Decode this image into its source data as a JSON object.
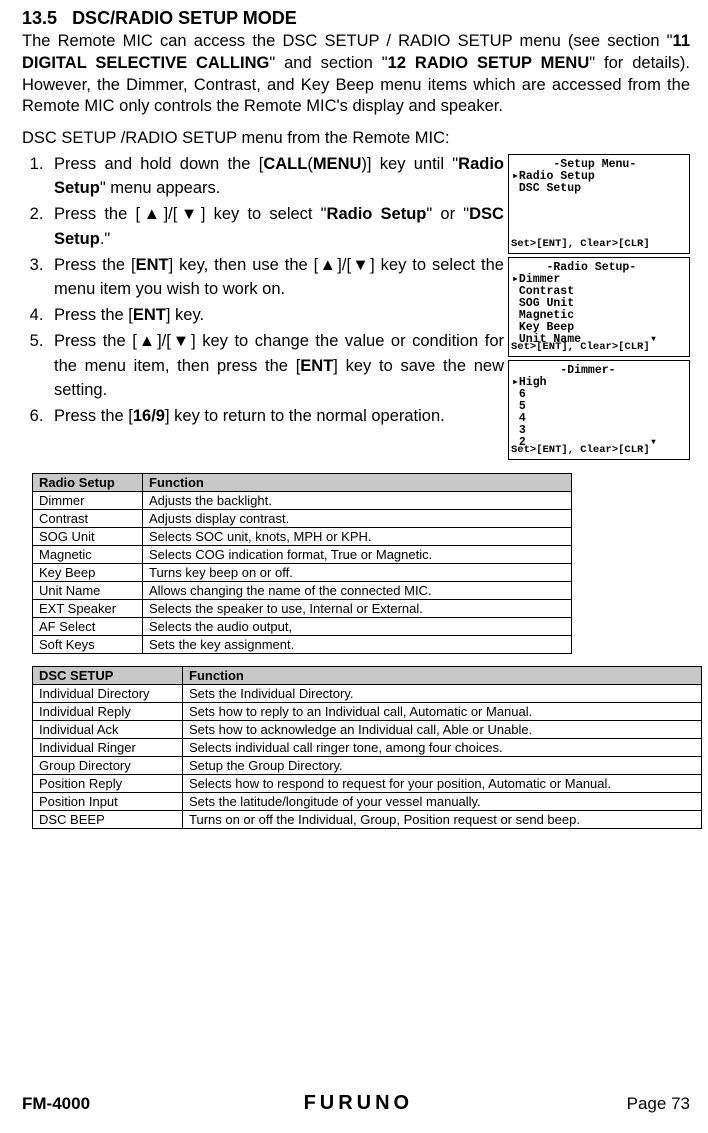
{
  "section": {
    "number": "13.5",
    "title": "DSC/RADIO SETUP MODE"
  },
  "intro": {
    "text_parts": [
      "The Remote MIC can access the DSC SETUP / RADIO SETUP menu (see section \"",
      "11 DIGITAL SELECTIVE CALLING",
      "\" and section \"",
      "12 RADIO SETUP MENU",
      "\" for details). However, the Dimmer, Contrast, and Key Beep menu items which are accessed from the Remote MIC only controls the Remote MIC's display and speaker."
    ]
  },
  "subintro": "DSC SETUP /RADIO SETUP menu from the Remote MIC:",
  "steps": [
    {
      "prefix": "Press and hold down the [",
      "b1": "CALL",
      "mid1": "(",
      "b2": "MENU",
      "mid2": ")] key until \"",
      "pix": "Radio Setup",
      "suffix": "\" menu appears."
    },
    {
      "prefix": "Press the [",
      "tri1": "▲",
      "mid1": "]/[",
      "tri2": "▼",
      "mid2": "] key to select \"",
      "pix": "Radio Setup",
      "mid3": "\" or \"",
      "pix2": "DSC Setup",
      "suffix": ".\""
    },
    {
      "prefix": "Press the [",
      "b1": "ENT",
      "mid1": "] key, then use the [",
      "tri1": "▲",
      "mid2": "]/[",
      "tri2": "▼",
      "suffix": "] key to select the menu item you wish to work on."
    },
    {
      "prefix": "Press the [",
      "b1": "ENT",
      "suffix": "] key."
    },
    {
      "prefix": "Press the [",
      "tri1": "▲",
      "mid1": "]/[",
      "tri2": "▼",
      "mid2": "] key to change the value or condi­tion for the menu item, then press the [",
      "b1": "ENT",
      "suffix": "] key to save the new setting."
    },
    {
      "prefix": "Press the [",
      "b1": "16/9",
      "suffix": "] key to return to the normal opera­tion."
    }
  ],
  "lcds": [
    {
      "lines": [
        "      -Setup Menu-",
        "▸Radio Setup",
        " DSC Setup",
        "",
        ""
      ],
      "footer": "Set>[ENT], Clear>[CLR]"
    },
    {
      "lines": [
        "     -Radio Setup-",
        "▸Dimmer",
        " Contrast",
        " SOG Unit",
        " Magnetic",
        " Key Beep",
        " Unit Name          ▾"
      ],
      "footer": "Set>[ENT], Clear>[CLR]"
    },
    {
      "lines": [
        "       -Dimmer-",
        "▸High",
        " 6",
        " 5",
        " 4",
        " 3",
        " 2                  ▾"
      ],
      "footer": "Set>[ENT], Clear>[CLR]"
    }
  ],
  "table1": {
    "headers": [
      "Radio Setup",
      "Function"
    ],
    "rows": [
      [
        "Dimmer",
        "Adjusts the backlight."
      ],
      [
        "Contrast",
        "Adjusts display contrast."
      ],
      [
        "SOG Unit",
        "Selects SOC unit, knots, MPH or KPH."
      ],
      [
        "Magnetic",
        "Selects COG indication format, True or Magnetic."
      ],
      [
        "Key Beep",
        "Turns key beep on or off."
      ],
      [
        "Unit Name",
        "Allows changing the name of the connected MIC."
      ],
      [
        "EXT Speaker",
        "Selects the speaker to use, Internal or External."
      ],
      [
        "AF Select",
        "Selects the audio output,"
      ],
      [
        "Soft Keys",
        "Sets the key assignment."
      ]
    ]
  },
  "table2": {
    "headers": [
      "DSC SETUP",
      "Function"
    ],
    "rows": [
      [
        "Individual Directory",
        "Sets the Individual Directory."
      ],
      [
        "Individual Reply",
        "Sets how to reply to an Individual call, Automatic or Manual."
      ],
      [
        "Individual Ack",
        "Sets how to acknowledge an Individual call, Able or Unable."
      ],
      [
        "Individual Ringer",
        "Selects individual call ringer tone, among four choices."
      ],
      [
        "Group Directory",
        "Setup the Group Directory."
      ],
      [
        "Position Reply",
        "Selects how to respond to request for your position, Automatic or Manual."
      ],
      [
        "Position Input",
        "Sets the latitude/longitude of your vessel manually."
      ],
      [
        "DSC BEEP",
        "Turns on or off the Individual, Group, Position request or send beep."
      ]
    ]
  },
  "footer": {
    "model": "FM-4000",
    "brand": "FURUNO",
    "page": "Page 73"
  }
}
